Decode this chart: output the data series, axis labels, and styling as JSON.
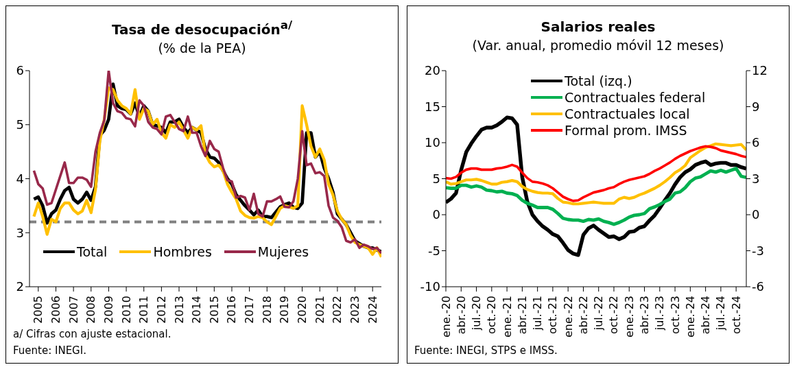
{
  "chart_data": [
    {
      "type": "line",
      "title": "Tasa de desocupación$^{a/}$",
      "subtitle": "(% de la PEA)",
      "x": [
        2005.25,
        2005.5,
        2005.75,
        2006,
        2006.25,
        2006.5,
        2006.75,
        2007,
        2007.25,
        2007.5,
        2007.75,
        2008,
        2008.25,
        2008.5,
        2008.75,
        2009,
        2009.25,
        2009.5,
        2009.75,
        2010,
        2010.25,
        2010.5,
        2010.75,
        2011,
        2011.25,
        2011.5,
        2011.75,
        2012,
        2012.25,
        2012.5,
        2012.75,
        2013,
        2013.25,
        2013.5,
        2013.75,
        2014,
        2014.25,
        2014.5,
        2014.75,
        2015,
        2015.25,
        2015.5,
        2015.75,
        2016,
        2016.25,
        2016.5,
        2016.75,
        2017,
        2017.25,
        2017.5,
        2017.75,
        2018,
        2018.25,
        2018.5,
        2018.75,
        2019,
        2019.25,
        2019.5,
        2019.75,
        2020,
        2020.25,
        2020.5,
        2020.75,
        2021,
        2021.25,
        2021.5,
        2021.75,
        2022,
        2022.25,
        2022.5,
        2022.75,
        2023,
        2023.25,
        2023.5,
        2023.75,
        2024,
        2024.25,
        2024.5,
        2024.75,
        2025
      ],
      "series": [
        {
          "name": "Total",
          "color": "#000000",
          "values": [
            3.62,
            3.66,
            3.5,
            3.18,
            3.35,
            3.42,
            3.62,
            3.78,
            3.84,
            3.62,
            3.55,
            3.62,
            3.75,
            3.6,
            3.85,
            4.8,
            4.9,
            5.1,
            5.75,
            5.35,
            5.3,
            5.28,
            5.2,
            5.4,
            5.15,
            5.35,
            5.25,
            5.0,
            4.98,
            4.95,
            4.85,
            5.05,
            5.05,
            5.1,
            4.95,
            4.85,
            4.95,
            4.9,
            4.85,
            4.55,
            4.4,
            4.38,
            4.3,
            4.15,
            4.0,
            3.9,
            3.7,
            3.6,
            3.5,
            3.42,
            3.33,
            3.42,
            3.3,
            3.3,
            3.28,
            3.38,
            3.48,
            3.52,
            3.55,
            3.47,
            3.45,
            3.55,
            4.85,
            4.85,
            4.4,
            4.5,
            4.2,
            4.0,
            3.75,
            3.35,
            3.25,
            3.15,
            3.0,
            2.85,
            2.8,
            2.75,
            2.72,
            2.72,
            2.68,
            2.65
          ]
        },
        {
          "name": "Hombres",
          "color": "#ffc000",
          "values": [
            3.3,
            3.55,
            3.3,
            2.97,
            3.25,
            3.2,
            3.45,
            3.55,
            3.55,
            3.42,
            3.35,
            3.4,
            3.6,
            3.37,
            3.8,
            4.7,
            5.1,
            5.68,
            5.65,
            5.45,
            5.35,
            5.3,
            5.2,
            5.65,
            5.1,
            5.3,
            5.25,
            5.0,
            5.1,
            4.85,
            4.75,
            5.0,
            4.95,
            5.05,
            4.9,
            4.75,
            4.95,
            4.9,
            4.98,
            4.45,
            4.3,
            4.22,
            4.25,
            4.15,
            3.9,
            3.75,
            3.62,
            3.4,
            3.32,
            3.28,
            3.27,
            3.3,
            3.28,
            3.2,
            3.15,
            3.3,
            3.45,
            3.5,
            3.48,
            3.45,
            3.5,
            5.35,
            5.0,
            4.6,
            4.4,
            4.55,
            4.35,
            3.9,
            3.7,
            3.4,
            3.25,
            3.15,
            2.95,
            2.82,
            2.78,
            2.75,
            2.72,
            2.6,
            2.72,
            2.55
          ]
        },
        {
          "name": "Mujeres",
          "color": "#98284a",
          "values": [
            4.15,
            3.9,
            3.82,
            3.52,
            3.55,
            3.8,
            4.05,
            4.3,
            3.92,
            3.92,
            4.02,
            4.02,
            3.98,
            3.85,
            4.5,
            4.85,
            5.08,
            6.0,
            5.4,
            5.25,
            5.22,
            5.12,
            5.1,
            4.97,
            5.45,
            5.35,
            5.05,
            4.95,
            4.92,
            4.82,
            5.15,
            5.18,
            5.05,
            4.92,
            4.88,
            5.15,
            4.85,
            4.85,
            4.6,
            4.42,
            4.7,
            4.55,
            4.5,
            4.2,
            3.97,
            3.95,
            3.65,
            3.68,
            3.65,
            3.42,
            3.72,
            3.35,
            3.3,
            3.58,
            3.58,
            3.62,
            3.67,
            3.48,
            3.47,
            3.58,
            4.0,
            4.88,
            4.25,
            4.28,
            4.1,
            4.12,
            4.05,
            3.5,
            3.28,
            3.22,
            3.1,
            2.85,
            2.82,
            2.88,
            2.72,
            2.78,
            2.75,
            2.7,
            2.72,
            2.62
          ]
        }
      ],
      "xlim": [
        2005,
        2025
      ],
      "xticks": [
        {
          "value": 2005.5,
          "label": "2005"
        },
        {
          "value": 2006.5,
          "label": "2006"
        },
        {
          "value": 2007.5,
          "label": "2007"
        },
        {
          "value": 2008.5,
          "label": "2008"
        },
        {
          "value": 2009.5,
          "label": "2009"
        },
        {
          "value": 2010.5,
          "label": "2010"
        },
        {
          "value": 2011.5,
          "label": "2011"
        },
        {
          "value": 2012.5,
          "label": "2012"
        },
        {
          "value": 2013.5,
          "label": "2013"
        },
        {
          "value": 2014.5,
          "label": "2014"
        },
        {
          "value": 2015.5,
          "label": "2015"
        },
        {
          "value": 2016.5,
          "label": "2016"
        },
        {
          "value": 2017.5,
          "label": "2017"
        },
        {
          "value": 2018.5,
          "label": "2018"
        },
        {
          "value": 2019.5,
          "label": "2019"
        },
        {
          "value": 2020.5,
          "label": "2020"
        },
        {
          "value": 2021.5,
          "label": "2021"
        },
        {
          "value": 2022.5,
          "label": "2022"
        },
        {
          "value": 2023.5,
          "label": "2023"
        },
        {
          "value": 2024.5,
          "label": "2024"
        }
      ],
      "ylim": [
        2,
        6
      ],
      "yticks": [
        2,
        3,
        4,
        5,
        6
      ],
      "ref_lines": [
        {
          "axis": "y",
          "value": 3.2,
          "color": "#808080",
          "line_style": "dashed"
        }
      ],
      "legend": "bottom",
      "marker": "none",
      "line_style": "solid",
      "annotations": [
        "a/ Cifras con ajuste estacional.",
        "Fuente: INEGI."
      ]
    },
    {
      "type": "line",
      "title": "Salarios reales",
      "subtitle": "(Var. anual, promedio móvil 12 meses)",
      "categories": [
        "ene.-20",
        null,
        null,
        "abr.-20",
        null,
        null,
        "jul.-20",
        null,
        null,
        "oct.-20",
        null,
        null,
        "ene.-21",
        null,
        null,
        "abr.-21",
        null,
        null,
        "jul.-21",
        null,
        null,
        "oct.-21",
        null,
        null,
        "ene.-22",
        null,
        null,
        "abr.-22",
        null,
        null,
        "jul.-22",
        null,
        null,
        "oct.-22",
        null,
        null,
        "ene.-23",
        null,
        null,
        "abr.-23",
        null,
        null,
        "jul.-23",
        null,
        null,
        "oct.-23",
        null,
        null,
        "ene.-24",
        null,
        null,
        "abr.-24",
        null,
        null,
        "jul.-24",
        null,
        null,
        "oct.-24",
        null,
        null
      ],
      "series": [
        {
          "name": "Total (izq.)",
          "color": "#000000",
          "values": [
            1.7,
            2.2,
            3.0,
            6.2,
            8.7,
            9.9,
            10.9,
            11.8,
            12.1,
            12.1,
            12.4,
            12.9,
            13.5,
            13.4,
            12.5,
            5.2,
            1.8,
            0,
            -0.9,
            -1.6,
            -2.1,
            -2.7,
            -3.0,
            -3.9,
            -4.9,
            -5.4,
            -5.6,
            -2.8,
            -1.9,
            -1.5,
            -2.1,
            -2.6,
            -3.1,
            -3.0,
            -3.4,
            -3.1,
            -2.4,
            -2.3,
            -1.8,
            -1.6,
            -0.8,
            -0.1,
            0.9,
            2.0,
            3.0,
            4.2,
            5.2,
            5.9,
            6.3,
            6.9,
            7.2,
            7.4,
            6.9,
            7.1,
            7.2,
            7.2,
            6.9,
            6.9,
            6.6,
            6.4
          ]
        },
        {
          "name": "Contractuales federal",
          "color": "#00b050",
          "axis": "y2",
          "values": [
            2.25,
            2.2,
            2.2,
            2.45,
            2.45,
            2.3,
            2.4,
            2.3,
            2.05,
            2.0,
            1.9,
            1.95,
            1.8,
            1.75,
            1.6,
            1.2,
            0.95,
            0.8,
            0.6,
            0.6,
            0.6,
            0.45,
            0.1,
            -0.3,
            -0.4,
            -0.45,
            -0.45,
            -0.55,
            -0.4,
            -0.45,
            -0.35,
            -0.55,
            -0.65,
            -0.8,
            -0.65,
            -0.45,
            -0.2,
            -0.05,
            0,
            0.1,
            0.5,
            0.65,
            0.85,
            1.1,
            1.3,
            1.8,
            1.9,
            2.25,
            2.75,
            3.05,
            3.15,
            3.4,
            3.65,
            3.55,
            3.7,
            3.55,
            3.7,
            3.85,
            3.2,
            3.1
          ]
        },
        {
          "name": "Contractuales local",
          "color": "#ffc000",
          "axis": "y2",
          "values": [
            2.75,
            2.55,
            2.6,
            2.75,
            2.9,
            2.9,
            2.95,
            2.85,
            2.7,
            2.55,
            2.55,
            2.7,
            2.75,
            2.85,
            2.75,
            2.35,
            2.1,
            1.95,
            1.85,
            1.8,
            1.8,
            1.75,
            1.35,
            1.05,
            1.0,
            0.9,
            0.9,
            0.95,
            1.0,
            1.05,
            1.0,
            0.95,
            0.95,
            0.95,
            1.3,
            1.45,
            1.35,
            1.45,
            1.65,
            1.8,
            2.0,
            2.2,
            2.45,
            2.75,
            3.1,
            3.5,
            3.75,
            4.1,
            4.75,
            5.05,
            5.35,
            5.6,
            5.75,
            5.9,
            5.85,
            5.8,
            5.75,
            5.8,
            5.85,
            5.4
          ]
        },
        {
          "name": "Formal prom. IMSS",
          "color": "#ff0000",
          "axis": "y2",
          "values": [
            3.05,
            3.0,
            3.15,
            3.5,
            3.75,
            3.85,
            3.85,
            3.75,
            3.75,
            3.75,
            3.85,
            3.9,
            4.0,
            4.15,
            4.0,
            3.5,
            3.05,
            2.75,
            2.7,
            2.6,
            2.45,
            2.2,
            1.85,
            1.5,
            1.3,
            1.15,
            1.2,
            1.45,
            1.65,
            1.85,
            1.95,
            2.05,
            2.2,
            2.3,
            2.55,
            2.75,
            2.9,
            3.0,
            3.1,
            3.2,
            3.4,
            3.65,
            3.85,
            4.1,
            4.35,
            4.65,
            4.9,
            5.1,
            5.3,
            5.45,
            5.6,
            5.7,
            5.65,
            5.55,
            5.35,
            5.25,
            5.15,
            5.05,
            4.9,
            4.8
          ]
        }
      ],
      "ylim": [
        -10,
        20
      ],
      "yticks": [
        -10,
        -5,
        0,
        5,
        10,
        15,
        20
      ],
      "y2lim": [
        -6,
        12
      ],
      "y2ticks": [
        -6,
        -3,
        0,
        3,
        6,
        9,
        12
      ],
      "legend": "top",
      "marker": "none",
      "line_style": "solid",
      "annotations": [
        "Fuente: INEGI, STPS e IMSS."
      ]
    }
  ]
}
